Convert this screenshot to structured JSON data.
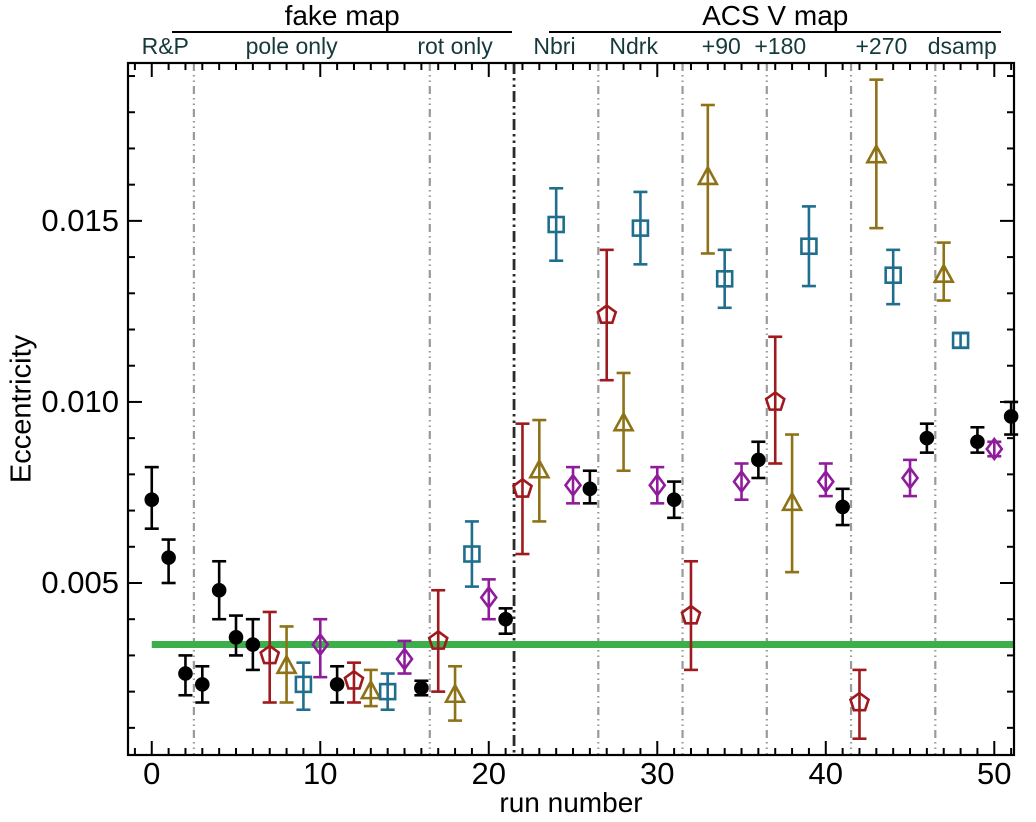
{
  "colors": {
    "circle": "#000000",
    "square": "#206e8e",
    "triangle": "#8e7217",
    "diamond": "#8f1d9b",
    "pentagon": "#9e1a1e",
    "reference_line": "#3cae4a",
    "divider_light": "#9a9a9a",
    "divider_dark": "#2a2a2a",
    "section_label_text": "#16393c",
    "axis_text": "#000000"
  },
  "group_headers": [
    {
      "label": "fake map",
      "from_run": 1.2,
      "to_run": 21.4
    },
    {
      "label": "ACS V map",
      "from_run": 23.6,
      "to_run": 50.4
    }
  ],
  "section_labels": [
    {
      "label": "R&P",
      "center_run": 0.8
    },
    {
      "label": "pole only",
      "center_run": 8.3
    },
    {
      "label": "rot only",
      "center_run": 18.0
    },
    {
      "label": "Nbri",
      "center_run": 23.9
    },
    {
      "label": "Ndrk",
      "center_run": 28.6
    },
    {
      "label": "+90",
      "center_run": 33.8
    },
    {
      "label": "+180",
      "center_run": 37.3
    },
    {
      "label": "+270",
      "center_run": 43.3
    },
    {
      "label": "dsamp",
      "center_run": 48.1
    }
  ],
  "chart_data": {
    "type": "scatter",
    "title": "",
    "xlabel": "run number",
    "ylabel": "Eccentricity",
    "xlim": [
      -1.41,
      51.17
    ],
    "ylim": [
      0.00025,
      0.01936
    ],
    "x_major_ticks": [
      0,
      10,
      20,
      30,
      40,
      50
    ],
    "x_tick_labels": [
      "0",
      "10",
      "20",
      "30",
      "40",
      "50"
    ],
    "x_minor_tick_step": 1,
    "y_major_ticks": [
      0.005,
      0.01,
      0.015
    ],
    "y_tick_labels": [
      "0.005",
      "0.010",
      "0.015"
    ],
    "y_minor_tick_step": 0.001,
    "grid": false,
    "legend": "none",
    "reference_line": {
      "y": 0.0033,
      "from_run": 0.0,
      "to_run": 51.17
    },
    "dividers": [
      {
        "run": 2.5,
        "style": "light"
      },
      {
        "run": 16.5,
        "style": "light"
      },
      {
        "run": 21.5,
        "style": "dark"
      },
      {
        "run": 26.5,
        "style": "light"
      },
      {
        "run": 31.5,
        "style": "light"
      },
      {
        "run": 36.5,
        "style": "light"
      },
      {
        "run": 41.5,
        "style": "light"
      },
      {
        "run": 46.5,
        "style": "light"
      }
    ],
    "points": [
      {
        "run": 0,
        "marker": "circle",
        "e": 0.0073,
        "lo": 0.0065,
        "hi": 0.0082
      },
      {
        "run": 1,
        "marker": "circle",
        "e": 0.0057,
        "lo": 0.005,
        "hi": 0.0062
      },
      {
        "run": 2,
        "marker": "circle",
        "e": 0.0025,
        "lo": 0.0019,
        "hi": 0.003
      },
      {
        "run": 3,
        "marker": "circle",
        "e": 0.0022,
        "lo": 0.0017,
        "hi": 0.0027
      },
      {
        "run": 4,
        "marker": "circle",
        "e": 0.0048,
        "lo": 0.004,
        "hi": 0.0056
      },
      {
        "run": 5,
        "marker": "circle",
        "e": 0.0035,
        "lo": 0.003,
        "hi": 0.0041
      },
      {
        "run": 6,
        "marker": "circle",
        "e": 0.0033,
        "lo": 0.0026,
        "hi": 0.004
      },
      {
        "run": 7,
        "marker": "pentagon",
        "e": 0.003,
        "lo": 0.0017,
        "hi": 0.0042
      },
      {
        "run": 8,
        "marker": "triangle",
        "e": 0.0027,
        "lo": 0.0017,
        "hi": 0.0038
      },
      {
        "run": 9,
        "marker": "square",
        "e": 0.0022,
        "lo": 0.0015,
        "hi": 0.0028
      },
      {
        "run": 10,
        "marker": "diamond",
        "e": 0.0033,
        "lo": 0.0024,
        "hi": 0.004
      },
      {
        "run": 11,
        "marker": "circle",
        "e": 0.0022,
        "lo": 0.0017,
        "hi": 0.0027
      },
      {
        "run": 12,
        "marker": "pentagon",
        "e": 0.0023,
        "lo": 0.0017,
        "hi": 0.0028
      },
      {
        "run": 13,
        "marker": "triangle",
        "e": 0.002,
        "lo": 0.0016,
        "hi": 0.0026
      },
      {
        "run": 14,
        "marker": "square",
        "e": 0.002,
        "lo": 0.0015,
        "hi": 0.0025
      },
      {
        "run": 15,
        "marker": "diamond",
        "e": 0.0029,
        "lo": 0.0025,
        "hi": 0.0034
      },
      {
        "run": 16,
        "marker": "circle",
        "e": 0.0021,
        "lo": 0.0019,
        "hi": 0.0023
      },
      {
        "run": 17,
        "marker": "pentagon",
        "e": 0.0034,
        "lo": 0.002,
        "hi": 0.0048
      },
      {
        "run": 18,
        "marker": "triangle",
        "e": 0.0019,
        "lo": 0.0012,
        "hi": 0.0027
      },
      {
        "run": 19,
        "marker": "square",
        "e": 0.0058,
        "lo": 0.0049,
        "hi": 0.0067
      },
      {
        "run": 20,
        "marker": "diamond",
        "e": 0.0046,
        "lo": 0.004,
        "hi": 0.0051
      },
      {
        "run": 21,
        "marker": "circle",
        "e": 0.004,
        "lo": 0.0036,
        "hi": 0.0043
      },
      {
        "run": 22,
        "marker": "pentagon",
        "e": 0.0076,
        "lo": 0.0058,
        "hi": 0.0094
      },
      {
        "run": 23,
        "marker": "triangle",
        "e": 0.0081,
        "lo": 0.0067,
        "hi": 0.0095
      },
      {
        "run": 24,
        "marker": "square",
        "e": 0.0149,
        "lo": 0.0139,
        "hi": 0.0159
      },
      {
        "run": 25,
        "marker": "diamond",
        "e": 0.0077,
        "lo": 0.0072,
        "hi": 0.0082
      },
      {
        "run": 26,
        "marker": "circle",
        "e": 0.0076,
        "lo": 0.0072,
        "hi": 0.0081
      },
      {
        "run": 27,
        "marker": "pentagon",
        "e": 0.0124,
        "lo": 0.0106,
        "hi": 0.0142
      },
      {
        "run": 28,
        "marker": "triangle",
        "e": 0.0094,
        "lo": 0.0081,
        "hi": 0.0108
      },
      {
        "run": 29,
        "marker": "square",
        "e": 0.0148,
        "lo": 0.0138,
        "hi": 0.0158
      },
      {
        "run": 30,
        "marker": "diamond",
        "e": 0.0077,
        "lo": 0.0072,
        "hi": 0.0082
      },
      {
        "run": 31,
        "marker": "circle",
        "e": 0.0073,
        "lo": 0.0068,
        "hi": 0.0078
      },
      {
        "run": 32,
        "marker": "pentagon",
        "e": 0.0041,
        "lo": 0.0026,
        "hi": 0.0056
      },
      {
        "run": 33,
        "marker": "triangle",
        "e": 0.0162,
        "lo": 0.0141,
        "hi": 0.0182
      },
      {
        "run": 34,
        "marker": "square",
        "e": 0.0134,
        "lo": 0.0126,
        "hi": 0.0142
      },
      {
        "run": 35,
        "marker": "diamond",
        "e": 0.0078,
        "lo": 0.0073,
        "hi": 0.0083
      },
      {
        "run": 36,
        "marker": "circle",
        "e": 0.0084,
        "lo": 0.0079,
        "hi": 0.0089
      },
      {
        "run": 37,
        "marker": "pentagon",
        "e": 0.01,
        "lo": 0.0083,
        "hi": 0.0118
      },
      {
        "run": 38,
        "marker": "triangle",
        "e": 0.0072,
        "lo": 0.0053,
        "hi": 0.0091
      },
      {
        "run": 39,
        "marker": "square",
        "e": 0.0143,
        "lo": 0.0132,
        "hi": 0.0154
      },
      {
        "run": 40,
        "marker": "diamond",
        "e": 0.0078,
        "lo": 0.0074,
        "hi": 0.0083
      },
      {
        "run": 41,
        "marker": "circle",
        "e": 0.0071,
        "lo": 0.0066,
        "hi": 0.0076
      },
      {
        "run": 42,
        "marker": "pentagon",
        "e": 0.0017,
        "lo": 0.0007,
        "hi": 0.0026
      },
      {
        "run": 43,
        "marker": "triangle",
        "e": 0.0168,
        "lo": 0.0148,
        "hi": 0.0189
      },
      {
        "run": 44,
        "marker": "square",
        "e": 0.0135,
        "lo": 0.0127,
        "hi": 0.0142
      },
      {
        "run": 45,
        "marker": "diamond",
        "e": 0.0079,
        "lo": 0.0074,
        "hi": 0.0084
      },
      {
        "run": 46,
        "marker": "circle",
        "e": 0.009,
        "lo": 0.0086,
        "hi": 0.0094
      },
      {
        "run": 47,
        "marker": "triangle",
        "e": 0.0135,
        "lo": 0.0128,
        "hi": 0.0144
      },
      {
        "run": 48,
        "marker": "square",
        "e": 0.0117,
        "lo": 0.0115,
        "hi": 0.0119
      },
      {
        "run": 49,
        "marker": "circle",
        "e": 0.0089,
        "lo": 0.0086,
        "hi": 0.0093
      },
      {
        "run": 50,
        "marker": "diamond",
        "e": 0.0087,
        "lo": 0.0085,
        "hi": 0.0089
      },
      {
        "run": 51,
        "marker": "circle",
        "e": 0.0096,
        "lo": 0.0091,
        "hi": 0.01
      }
    ]
  }
}
